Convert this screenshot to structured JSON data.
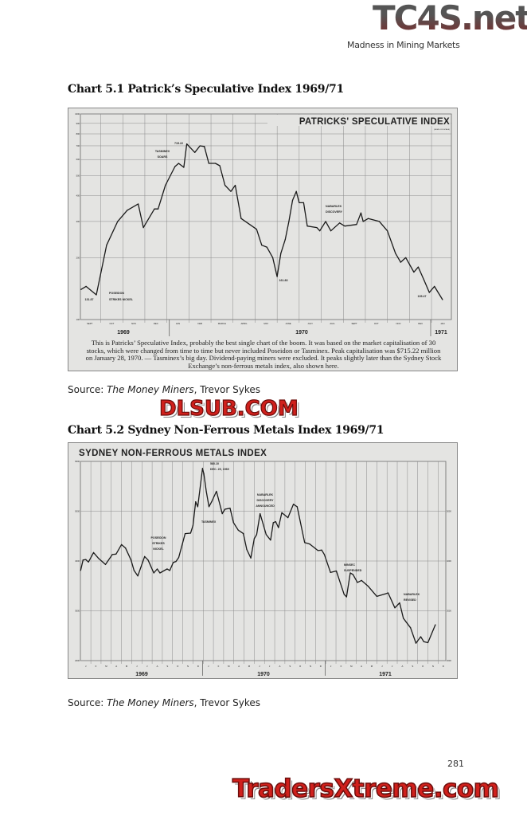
{
  "header": {
    "logo": "TC4S.net",
    "running_head": "Madness in Mining Markets"
  },
  "figures": [
    {
      "title": "Chart 5.1 Patrick’s Speculative Index 1969/71",
      "source_prefix": "Source: ",
      "source_title": "The Money Miners",
      "source_suffix": ", Trevor Sykes"
    },
    {
      "title": "Chart 5.2 Sydney Non-Ferrous Metals Index 1969/71",
      "source_prefix": "Source: ",
      "source_title": "The Money Miners",
      "source_suffix": ", Trevor Sykes"
    }
  ],
  "watermarks": {
    "top": "DLSUB.COM",
    "bottom": "TradersXtreme.com",
    "color": "#d0201c"
  },
  "page_number": "281",
  "chart_data": [
    {
      "type": "line",
      "title": "PATRICKS' SPECULATIVE INDEX",
      "subtitle": "(SEMI-LOG SCALE)",
      "y_scale": "log",
      "ylim": [
        100,
        1000
      ],
      "y_tick_labels": [
        "1000",
        "900",
        "800",
        "700",
        "600",
        "500",
        "400",
        "300",
        "200",
        "100"
      ],
      "y_ticks": [
        1000,
        900,
        800,
        700,
        600,
        500,
        400,
        300,
        200,
        100
      ],
      "x_tick_labels": [
        "SEPT",
        "OCT",
        "NOV",
        "DEC",
        "JAN",
        "FEB",
        "MARCH",
        "APRIL",
        "MAY",
        "JUNE",
        "JULY",
        "AUG",
        "SEPT",
        "OCT",
        "NOV",
        "DEC",
        "JAN"
      ],
      "year_labels": [
        "1969",
        "1970",
        "1971"
      ],
      "grid": true,
      "annotations": [
        {
          "lines": [
            "715.22"
          ]
        },
        {
          "lines": [
            "TASMINEX",
            "SOARS"
          ]
        },
        {
          "lines": [
            "131.87"
          ]
        },
        {
          "lines": [
            "POSEIDON",
            "STRIKES NICKEL"
          ]
        },
        {
          "lines": [
            "161.83"
          ]
        },
        {
          "lines": [
            "NABARLEK",
            "DISCOVERY"
          ]
        },
        {
          "lines": [
            "135.47"
          ]
        }
      ],
      "caption": "This is Patricks’ Speculative Index, probably the best single chart of the boom. It was based on the market capitalisation of 30 stocks, which were changed from time to time but never included Poseidon or Tasminex. Peak capitalisation was $715.22 million on January 28, 1970. — Tasminex’s big day. Dividend-paying miners were excluded. It peaks slightly later than the Sydney Stock Exchange’s non-ferrous metals index, also shown here.",
      "series": [
        {
          "points": [
            [
              "1969-09-04",
              140
            ],
            [
              "1969-09-11",
              145
            ],
            [
              "1969-09-25",
              131.87
            ],
            [
              "1969-10-09",
              230
            ],
            [
              "1969-10-24",
              300
            ],
            [
              "1969-11-07",
              340
            ],
            [
              "1969-11-22",
              365
            ],
            [
              "1969-11-29",
              280
            ],
            [
              "1969-12-14",
              345
            ],
            [
              "1969-12-19",
              345
            ],
            [
              "1969-12-29",
              450
            ],
            [
              "1970-01-12",
              555
            ],
            [
              "1970-01-17",
              575
            ],
            [
              "1970-01-24",
              550
            ],
            [
              "1970-01-28",
              715.22
            ],
            [
              "1970-02-09",
              650
            ],
            [
              "1970-02-16",
              700
            ],
            [
              "1970-02-22",
              695
            ],
            [
              "1970-02-28",
              575
            ],
            [
              "1970-03-07",
              575
            ],
            [
              "1970-03-13",
              560
            ],
            [
              "1970-03-20",
              450
            ],
            [
              "1970-03-28",
              420
            ],
            [
              "1970-04-04",
              450
            ],
            [
              "1970-04-12",
              310
            ],
            [
              "1970-05-03",
              275
            ],
            [
              "1970-05-10",
              230
            ],
            [
              "1970-05-17",
              225
            ],
            [
              "1970-05-25",
              200
            ],
            [
              "1970-06-01",
              161.83
            ],
            [
              "1970-06-06",
              210
            ],
            [
              "1970-06-12",
              245
            ],
            [
              "1970-06-17",
              300
            ],
            [
              "1970-06-22",
              380
            ],
            [
              "1970-06-27",
              420
            ],
            [
              "1970-07-01",
              370
            ],
            [
              "1970-07-07",
              370
            ],
            [
              "1970-07-12",
              285
            ],
            [
              "1970-07-25",
              280
            ],
            [
              "1970-07-29",
              270
            ],
            [
              "1970-08-07",
              300
            ],
            [
              "1970-08-14",
              270
            ],
            [
              "1970-08-26",
              295
            ],
            [
              "1970-09-03",
              285
            ],
            [
              "1970-09-19",
              290
            ],
            [
              "1970-09-25",
              330
            ],
            [
              "1970-09-28",
              300
            ],
            [
              "1970-10-05",
              310
            ],
            [
              "1970-10-20",
              300
            ],
            [
              "1970-11-01",
              270
            ],
            [
              "1970-11-12",
              210
            ],
            [
              "1970-11-19",
              190
            ],
            [
              "1970-11-26",
              200
            ],
            [
              "1970-12-07",
              170
            ],
            [
              "1970-12-13",
              180
            ],
            [
              "1970-12-21",
              155
            ],
            [
              "1970-12-28",
              135.47
            ],
            [
              "1971-01-05",
              145
            ],
            [
              "1971-01-16",
              125
            ]
          ]
        }
      ]
    },
    {
      "type": "line",
      "title": "SYDNEY NON-FERROUS METALS INDEX",
      "y_scale": "linear",
      "ylim": [
        2000,
        6000
      ],
      "y_tick_labels": [
        "6000",
        "5000",
        "4000",
        "3000",
        "2000"
      ],
      "y_ticks": [
        6000,
        5000,
        4000,
        3000,
        2000
      ],
      "y_right_tick_labels": [
        "5000",
        "4000",
        "3000",
        "2000"
      ],
      "y_right_ticks": [
        5000,
        4000,
        3000,
        2000
      ],
      "x_tick_labels": [
        "J",
        "F",
        "M",
        "A",
        "M",
        "J",
        "J",
        "A",
        "S",
        "O",
        "N",
        "D",
        "J",
        "F",
        "M",
        "A",
        "M",
        "J",
        "J",
        "A",
        "S",
        "O",
        "N",
        "D",
        "J",
        "F",
        "M",
        "A",
        "M",
        "J",
        "J",
        "A",
        "S",
        "O",
        "N",
        "D"
      ],
      "year_labels": [
        "1969",
        "1970",
        "1971"
      ],
      "grid": true,
      "annotations": [
        {
          "lines": [
            "580.10",
            "DEC. 29, 1969"
          ]
        },
        {
          "lines": [
            "NABARLEK",
            "DISCOVERY",
            "ANNOUNCED"
          ]
        },
        {
          "lines": [
            "TASMINEX"
          ]
        },
        {
          "lines": [
            "POSEIDON",
            "STRIKES",
            "NICKEL"
          ]
        },
        {
          "lines": [
            "MINSEC",
            "SUSPENDED"
          ]
        },
        {
          "lines": [
            "NABARLEK",
            "REVISED"
          ]
        }
      ],
      "series": [
        {
          "points": [
            [
              "1969-01-01",
              3810
            ],
            [
              "1969-01-08",
              4020
            ],
            [
              "1969-01-16",
              4030
            ],
            [
              "1969-01-24",
              3980
            ],
            [
              "1969-02-09",
              4170
            ],
            [
              "1969-02-24",
              4050
            ],
            [
              "1969-03-14",
              3930
            ],
            [
              "1969-04-04",
              4130
            ],
            [
              "1969-04-15",
              4140
            ],
            [
              "1969-05-01",
              4330
            ],
            [
              "1969-05-13",
              4260
            ],
            [
              "1969-05-29",
              4020
            ],
            [
              "1969-06-08",
              3810
            ],
            [
              "1969-06-19",
              3700
            ],
            [
              "1969-07-09",
              4090
            ],
            [
              "1969-07-19",
              4020
            ],
            [
              "1969-08-06",
              3760
            ],
            [
              "1969-08-16",
              3840
            ],
            [
              "1969-08-24",
              3760
            ],
            [
              "1969-09-15",
              3840
            ],
            [
              "1969-09-23",
              3810
            ],
            [
              "1969-10-03",
              3970
            ],
            [
              "1969-10-11",
              3990
            ],
            [
              "1969-10-19",
              4070
            ],
            [
              "1969-11-08",
              4550
            ],
            [
              "1969-11-24",
              4560
            ],
            [
              "1969-12-01",
              4710
            ],
            [
              "1969-12-09",
              5190
            ],
            [
              "1969-12-15",
              5090
            ],
            [
              "1969-12-29",
              5860
            ],
            [
              "1970-01-03",
              5750
            ],
            [
              "1970-01-10",
              5400
            ],
            [
              "1970-01-18",
              5090
            ],
            [
              "1970-01-26",
              5190
            ],
            [
              "1970-02-10",
              5400
            ],
            [
              "1970-02-27",
              4950
            ],
            [
              "1970-03-05",
              5040
            ],
            [
              "1970-03-20",
              5060
            ],
            [
              "1970-03-30",
              4770
            ],
            [
              "1970-04-14",
              4620
            ],
            [
              "1970-04-29",
              4550
            ],
            [
              "1970-05-09",
              4230
            ],
            [
              "1970-05-21",
              4060
            ],
            [
              "1970-05-31",
              4450
            ],
            [
              "1970-06-08",
              4530
            ],
            [
              "1970-06-18",
              4950
            ],
            [
              "1970-07-06",
              4530
            ],
            [
              "1970-07-19",
              4420
            ],
            [
              "1970-07-27",
              4770
            ],
            [
              "1970-08-04",
              4790
            ],
            [
              "1970-08-12",
              4670
            ],
            [
              "1970-08-22",
              4970
            ],
            [
              "1970-09-10",
              4870
            ],
            [
              "1970-09-26",
              5140
            ],
            [
              "1970-10-07",
              5090
            ],
            [
              "1970-10-29",
              4370
            ],
            [
              "1970-11-14",
              4340
            ],
            [
              "1970-12-08",
              4210
            ],
            [
              "1970-12-19",
              4220
            ],
            [
              "1970-12-27",
              4130
            ],
            [
              "1971-01-15",
              3770
            ],
            [
              "1971-02-02",
              3800
            ],
            [
              "1971-02-25",
              3330
            ],
            [
              "1971-03-02",
              3280
            ],
            [
              "1971-03-13",
              3760
            ],
            [
              "1971-03-21",
              3730
            ],
            [
              "1971-04-04",
              3570
            ],
            [
              "1971-04-16",
              3610
            ],
            [
              "1971-05-06",
              3490
            ],
            [
              "1971-05-31",
              3290
            ],
            [
              "1971-06-26",
              3340
            ],
            [
              "1971-07-04",
              3360
            ],
            [
              "1971-07-24",
              3060
            ],
            [
              "1971-08-08",
              3160
            ],
            [
              "1971-08-19",
              2850
            ],
            [
              "1971-09-10",
              2660
            ],
            [
              "1971-09-26",
              2350
            ],
            [
              "1971-10-10",
              2480
            ],
            [
              "1971-10-19",
              2380
            ],
            [
              "1971-11-01",
              2360
            ],
            [
              "1971-11-23",
              2720
            ]
          ]
        }
      ]
    }
  ]
}
